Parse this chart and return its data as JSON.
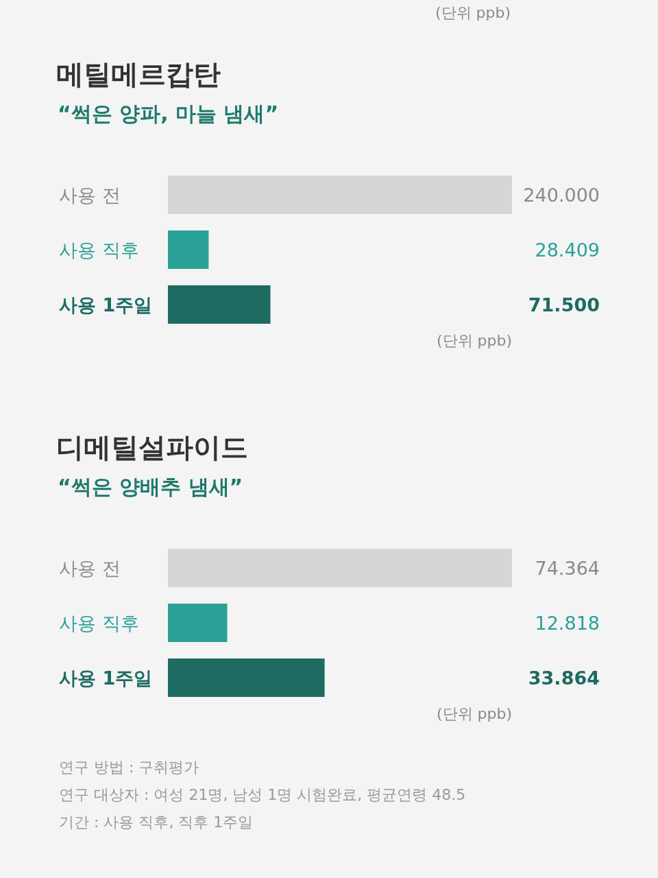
{
  "chart_data": [
    {
      "type": "other",
      "annotations": [
        "(단위 ppb)"
      ]
    },
    {
      "type": "bar",
      "orientation": "horizontal",
      "title": "메틸메르캅탄",
      "subtitle": "“썩은 양파, 마늘 냄새”",
      "categories": [
        "사용 전",
        "사용 직후",
        "사용 1주일"
      ],
      "values": [
        240,
        28.409,
        71.5
      ],
      "colors": [
        "#d6d6d6",
        "#2aa197",
        "#1e6b62"
      ],
      "value_labels": [
        "240.000",
        "28.409",
        "71.500"
      ],
      "annotations": [
        "(단위 ppb)"
      ]
    },
    {
      "type": "bar",
      "orientation": "horizontal",
      "title": "디메틸설파이드",
      "subtitle": "“썩은 양배추 냄새”",
      "categories": [
        "사용 전",
        "사용 직후",
        "사용 1주일"
      ],
      "values": [
        74.364,
        12.818,
        33.864
      ],
      "colors": [
        "#d6d6d6",
        "#2aa197",
        "#1e6b62"
      ],
      "value_labels": [
        "74.364",
        "12.818",
        "33.864"
      ],
      "annotations": [
        "(단위 ppb)",
        "연구 방법 : 구취평가",
        "연구 대상자 : 여성 21명, 남성 1명 시험완료, 평균연령 48.5",
        "기간 : 사용 직후, 직후 1주일"
      ]
    }
  ]
}
